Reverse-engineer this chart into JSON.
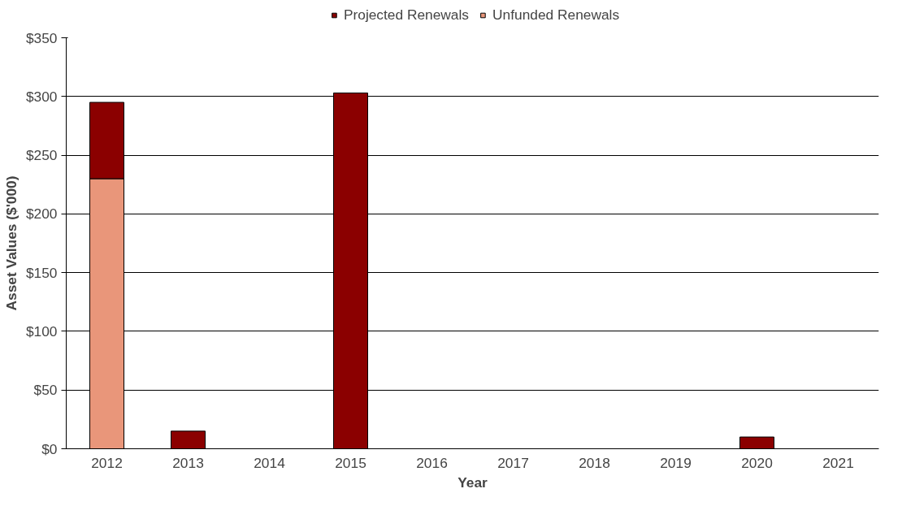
{
  "chart_data": {
    "type": "bar",
    "stacked": true,
    "xlabel": "Year",
    "ylabel": "Asset Values ($'000)",
    "categories": [
      "2012",
      "2013",
      "2014",
      "2015",
      "2016",
      "2017",
      "2018",
      "2019",
      "2020",
      "2021"
    ],
    "series": [
      {
        "name": "Unfunded Renewals",
        "color": "#e9967a",
        "values": [
          230,
          0,
          0,
          0,
          0,
          0,
          0,
          0,
          0,
          0
        ]
      },
      {
        "name": "Projected Renewals",
        "color": "#8b0000",
        "values": [
          65,
          15,
          0,
          303,
          0,
          0,
          0,
          0,
          10,
          0
        ]
      }
    ],
    "ylim": [
      0,
      350
    ],
    "yticks": [
      {
        "value": 0,
        "label": "$0"
      },
      {
        "value": 50,
        "label": "$50"
      },
      {
        "value": 100,
        "label": "$100"
      },
      {
        "value": 150,
        "label": "$150"
      },
      {
        "value": 200,
        "label": "$200"
      },
      {
        "value": 250,
        "label": "$250"
      },
      {
        "value": 300,
        "label": "$300"
      },
      {
        "value": 350,
        "label": "$350"
      }
    ],
    "grid": "y",
    "legend": "top"
  }
}
